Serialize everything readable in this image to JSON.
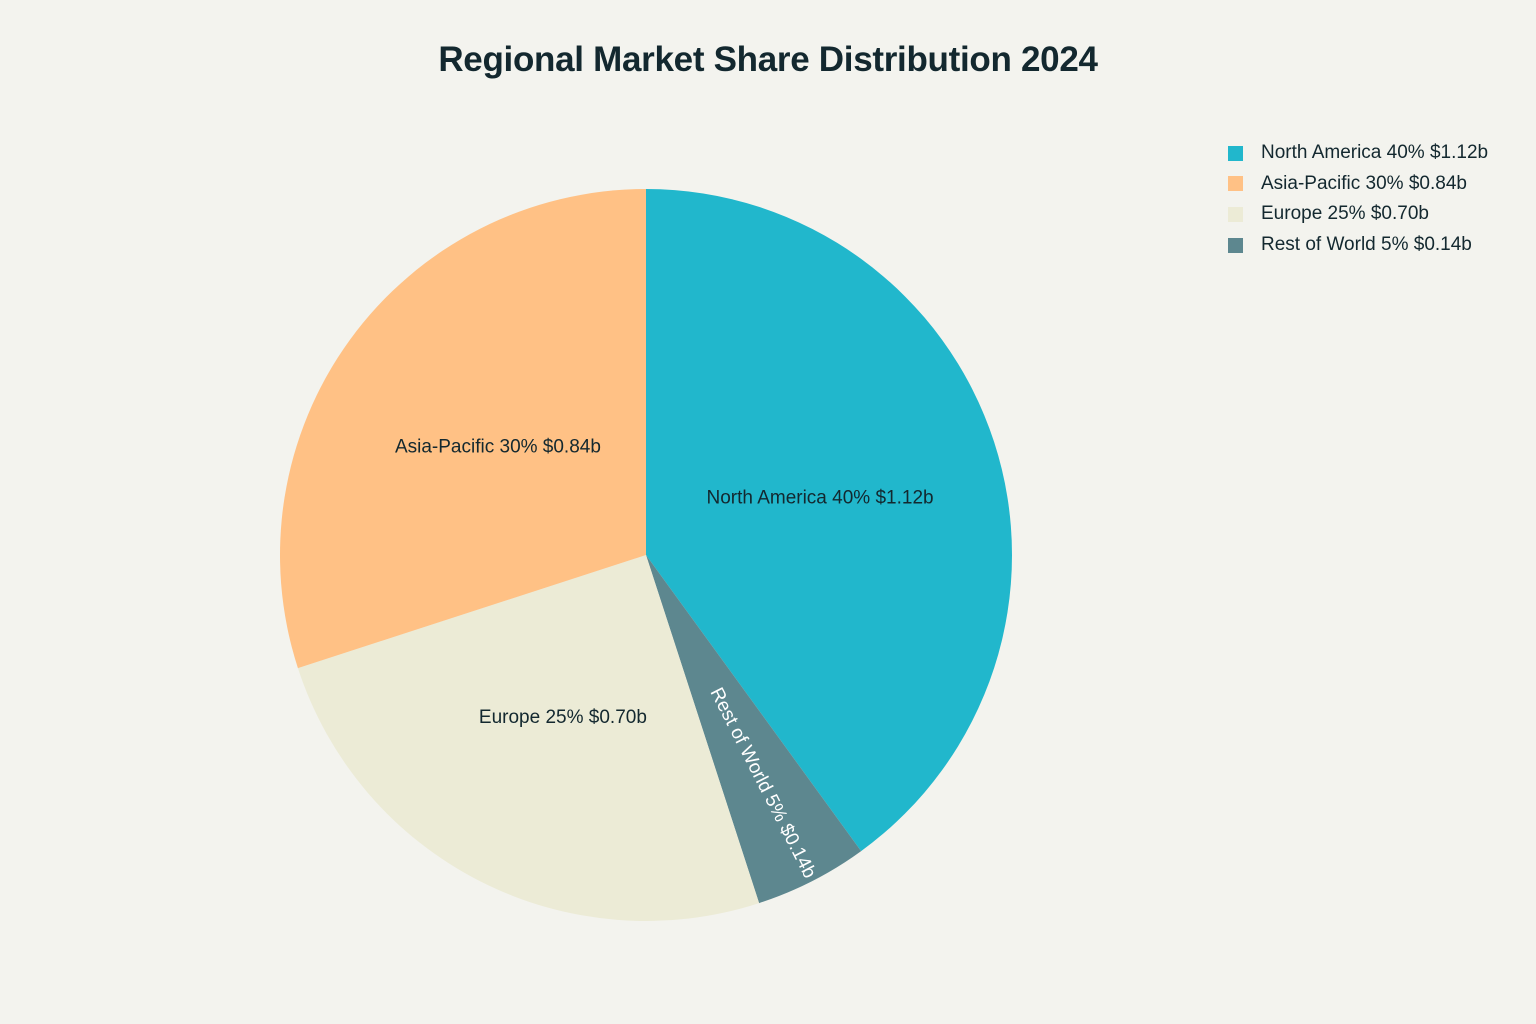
{
  "chart_data": {
    "type": "pie",
    "title": "Regional Market Share Distribution 2024",
    "legend_position": "top-right",
    "slices": [
      {
        "label": "North America 40% $1.12b",
        "value": 40,
        "color": "#21b7cc",
        "label_color": "#13282f"
      },
      {
        "label": "Rest of World 5% $0.14b",
        "value": 5,
        "color": "#5d878f",
        "label_color": "#ffffff"
      },
      {
        "label": "Europe 25% $0.70b",
        "value": 25,
        "color": "#ecebd6",
        "label_color": "#13282f"
      },
      {
        "label": "Asia-Pacific 30% $0.84b",
        "value": 30,
        "color": "#ffc185",
        "label_color": "#13282f"
      }
    ],
    "legend": [
      {
        "label": "North America 40% $1.12b",
        "color": "#21b7cc"
      },
      {
        "label": "Asia-Pacific 30% $0.84b",
        "color": "#ffc185"
      },
      {
        "label": "Europe 25% $0.70b",
        "color": "#ecebd6"
      },
      {
        "label": "Rest of World 5% $0.14b",
        "color": "#5d878f"
      }
    ]
  }
}
